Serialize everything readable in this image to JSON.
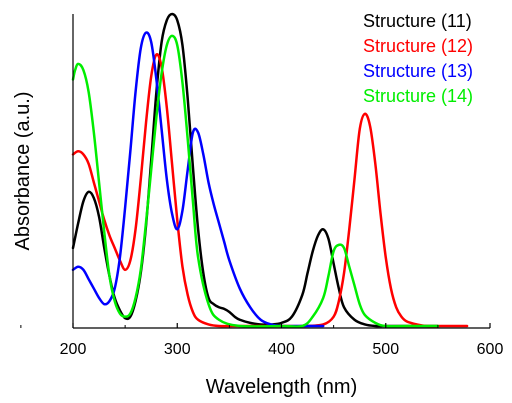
{
  "chart_data": {
    "type": "line",
    "xlabel": "Wavelength (nm)",
    "ylabel": "Absorbance (a.u.)",
    "xlim": [
      200,
      600
    ],
    "ylim": [
      0,
      1
    ],
    "xticks": [
      200,
      300,
      400,
      500,
      600
    ],
    "xtick_labels": [
      "200",
      "300",
      "400",
      "500",
      "600"
    ],
    "y_tick_labels_shown": false,
    "grid": false,
    "legend_position": "top-right",
    "series": [
      {
        "name": "Structure (11)",
        "color": "#000000",
        "x": [
          200,
          205,
          210,
          215,
          220,
          225,
          230,
          235,
          240,
          245,
          250,
          255,
          260,
          265,
          270,
          275,
          280,
          285,
          290,
          295,
          300,
          305,
          310,
          315,
          320,
          325,
          330,
          335,
          340,
          345,
          350,
          355,
          360,
          370,
          380,
          390,
          400,
          410,
          420,
          425,
          430,
          435,
          440,
          445,
          450,
          455,
          460,
          470,
          480,
          490,
          500,
          510,
          520,
          530,
          540,
          550
        ],
        "y": [
          0.25,
          0.33,
          0.4,
          0.43,
          0.41,
          0.35,
          0.25,
          0.16,
          0.09,
          0.05,
          0.025,
          0.03,
          0.08,
          0.17,
          0.32,
          0.53,
          0.75,
          0.91,
          0.98,
          1.0,
          0.98,
          0.9,
          0.73,
          0.51,
          0.31,
          0.17,
          0.09,
          0.07,
          0.06,
          0.055,
          0.045,
          0.03,
          0.02,
          0.01,
          0.005,
          0.005,
          0.01,
          0.03,
          0.1,
          0.17,
          0.24,
          0.29,
          0.31,
          0.28,
          0.2,
          0.12,
          0.06,
          0.02,
          0.005,
          0.0,
          0.0,
          0.0,
          0.0,
          0.0,
          0.0,
          0.0
        ]
      },
      {
        "name": "Structure (12)",
        "color": "#ff0000",
        "x": [
          200,
          205,
          210,
          215,
          220,
          225,
          230,
          235,
          240,
          245,
          250,
          255,
          260,
          265,
          270,
          275,
          280,
          285,
          290,
          295,
          300,
          305,
          310,
          315,
          320,
          330,
          340,
          360,
          380,
          400,
          420,
          440,
          450,
          455,
          460,
          465,
          470,
          475,
          480,
          485,
          490,
          495,
          500,
          505,
          510,
          515,
          520,
          530,
          540,
          560,
          578
        ],
        "y": [
          0.55,
          0.56,
          0.55,
          0.52,
          0.46,
          0.4,
          0.34,
          0.29,
          0.25,
          0.21,
          0.18,
          0.21,
          0.31,
          0.47,
          0.65,
          0.8,
          0.87,
          0.83,
          0.7,
          0.52,
          0.34,
          0.19,
          0.1,
          0.045,
          0.02,
          0.005,
          0.0,
          0.0,
          0.0,
          0.0,
          0.0,
          0.005,
          0.03,
          0.08,
          0.17,
          0.31,
          0.47,
          0.63,
          0.68,
          0.64,
          0.52,
          0.36,
          0.22,
          0.12,
          0.06,
          0.03,
          0.015,
          0.005,
          0.0,
          0.0,
          0.0
        ]
      },
      {
        "name": "Structure (13)",
        "color": "#0000ff",
        "x": [
          200,
          205,
          210,
          215,
          220,
          225,
          230,
          235,
          240,
          245,
          250,
          255,
          260,
          265,
          270,
          275,
          280,
          285,
          290,
          295,
          300,
          305,
          310,
          315,
          320,
          325,
          330,
          335,
          340,
          345,
          350,
          360,
          370,
          380,
          390,
          400,
          420,
          440
        ],
        "y": [
          0.18,
          0.19,
          0.18,
          0.15,
          0.12,
          0.09,
          0.07,
          0.08,
          0.12,
          0.22,
          0.38,
          0.56,
          0.75,
          0.89,
          0.94,
          0.91,
          0.79,
          0.63,
          0.47,
          0.36,
          0.31,
          0.37,
          0.5,
          0.62,
          0.62,
          0.55,
          0.46,
          0.39,
          0.33,
          0.27,
          0.21,
          0.12,
          0.06,
          0.02,
          0.005,
          0.0,
          0.0,
          0.0
        ]
      },
      {
        "name": "Structure (14)",
        "color": "#00ee00",
        "x": [
          200,
          202,
          205,
          210,
          215,
          220,
          225,
          230,
          235,
          240,
          245,
          250,
          255,
          260,
          265,
          270,
          275,
          280,
          285,
          290,
          295,
          300,
          305,
          310,
          315,
          320,
          330,
          340,
          360,
          400,
          420,
          430,
          440,
          445,
          450,
          455,
          460,
          465,
          470,
          475,
          480,
          490,
          500,
          520,
          550
        ],
        "y": [
          0.79,
          0.82,
          0.84,
          0.82,
          0.75,
          0.62,
          0.46,
          0.3,
          0.16,
          0.08,
          0.04,
          0.03,
          0.04,
          0.09,
          0.18,
          0.33,
          0.5,
          0.67,
          0.81,
          0.9,
          0.93,
          0.9,
          0.78,
          0.6,
          0.4,
          0.22,
          0.07,
          0.02,
          0.0,
          0.0,
          0.0,
          0.03,
          0.09,
          0.16,
          0.24,
          0.26,
          0.25,
          0.19,
          0.13,
          0.07,
          0.035,
          0.01,
          0.0,
          0.0,
          0.0
        ]
      }
    ]
  }
}
